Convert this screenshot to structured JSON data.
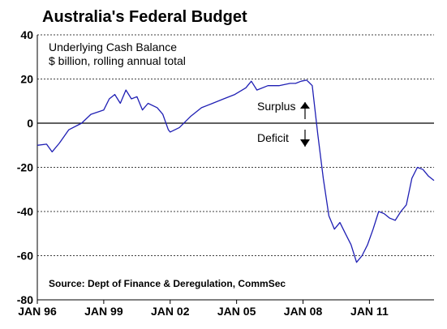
{
  "chart_data": {
    "type": "line",
    "title": "Australia's Federal Budget",
    "subtitle_line1": "Underlying Cash Balance",
    "subtitle_line2": "$ billion, rolling annual total",
    "source": "Source: Dept of Finance & Deregulation, CommSec",
    "xlabel": "",
    "ylabel": "",
    "ylim": [
      -80,
      40
    ],
    "xlim": [
      "1996-01",
      "2013-12"
    ],
    "grid": "horizontal dashed",
    "y_ticks": [
      40,
      20,
      0,
      -20,
      -40,
      -60,
      -80
    ],
    "x_ticks": [
      "JAN 96",
      "JAN 99",
      "JAN 02",
      "JAN 05",
      "JAN 08",
      "JAN 11"
    ],
    "annotations": {
      "surplus": "Surplus",
      "deficit": "Deficit"
    },
    "line_color": "#1f1fb4",
    "series": [
      {
        "x": [
          "1996-01",
          "1996-06",
          "1996-09",
          "1997-01",
          "1997-06",
          "1998-01",
          "1998-06",
          "1999-01",
          "1999-04",
          "1999-07",
          "1999-10",
          "2000-01",
          "2000-04",
          "2000-07",
          "2000-10",
          "2001-01",
          "2001-06",
          "2001-09",
          "2001-12",
          "2002-01",
          "2002-06",
          "2002-12",
          "2003-06",
          "2003-12",
          "2004-06",
          "2004-12",
          "2005-06",
          "2005-09",
          "2005-12",
          "2006-06",
          "2006-12",
          "2007-06",
          "2007-09",
          "2007-12",
          "2008-03",
          "2008-06",
          "2008-09",
          "2008-12",
          "2009-03",
          "2009-06",
          "2009-09",
          "2009-12",
          "2010-03",
          "2010-06",
          "2010-09",
          "2010-12",
          "2011-03",
          "2011-06",
          "2011-09",
          "2011-12",
          "2012-03",
          "2012-06",
          "2012-09",
          "2012-12",
          "2013-03",
          "2013-06",
          "2013-09",
          "2013-12"
        ],
        "y": [
          -10,
          -9.5,
          -13,
          -9,
          -3,
          0,
          4,
          6,
          11,
          13,
          9,
          15,
          11,
          12,
          6,
          9,
          7,
          4,
          -3,
          -4,
          -2,
          3,
          7,
          9,
          11,
          13,
          16,
          19,
          15,
          17,
          17,
          18,
          18,
          19,
          19.5,
          17,
          -5,
          -25,
          -42,
          -48,
          -45,
          -50,
          -55,
          -63,
          -60,
          -55,
          -48,
          -40,
          -41,
          -43,
          -44,
          -40,
          -37,
          -25,
          -20,
          -21,
          -24,
          -26
        ]
      }
    ]
  }
}
